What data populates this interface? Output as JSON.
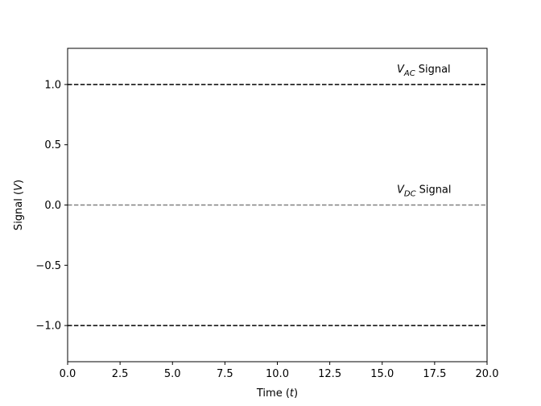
{
  "chart_data": {
    "type": "line",
    "title": "",
    "xlabel": "Time (t)",
    "ylabel": "Signal (V)",
    "xlim": [
      0.0,
      20.0
    ],
    "ylim": [
      -1.3,
      1.3
    ],
    "grid": false,
    "xticks": [
      0.0,
      2.5,
      5.0,
      7.5,
      10.0,
      12.5,
      15.0,
      17.5,
      20.0
    ],
    "xtick_labels": [
      "0.0",
      "2.5",
      "5.0",
      "7.5",
      "10.0",
      "12.5",
      "15.0",
      "17.5",
      "20.0"
    ],
    "yticks": [
      -1.0,
      -0.5,
      0.0,
      0.5,
      1.0
    ],
    "ytick_labels": [
      "−1.0",
      "−0.5",
      "0.0",
      "0.5",
      "1.0"
    ],
    "series": [
      {
        "x": [
          0.0,
          20.0
        ],
        "y": [
          1.0,
          1.0
        ],
        "color": "#000000",
        "linestyle": "dashed"
      },
      {
        "x": [
          0.0,
          20.0
        ],
        "y": [
          0.0,
          0.0
        ],
        "color": "#808080",
        "linestyle": "dashed"
      },
      {
        "x": [
          0.0,
          20.0
        ],
        "y": [
          -1.0,
          -1.0
        ],
        "color": "#000000",
        "linestyle": "dashed"
      }
    ],
    "annotations": [
      {
        "x": 15.7,
        "y": 1.1,
        "symbol": "V",
        "subscript": "AC",
        "suffix": "Signal"
      },
      {
        "x": 15.7,
        "y": 0.1,
        "symbol": "V",
        "subscript": "DC",
        "suffix": "Signal"
      }
    ]
  }
}
